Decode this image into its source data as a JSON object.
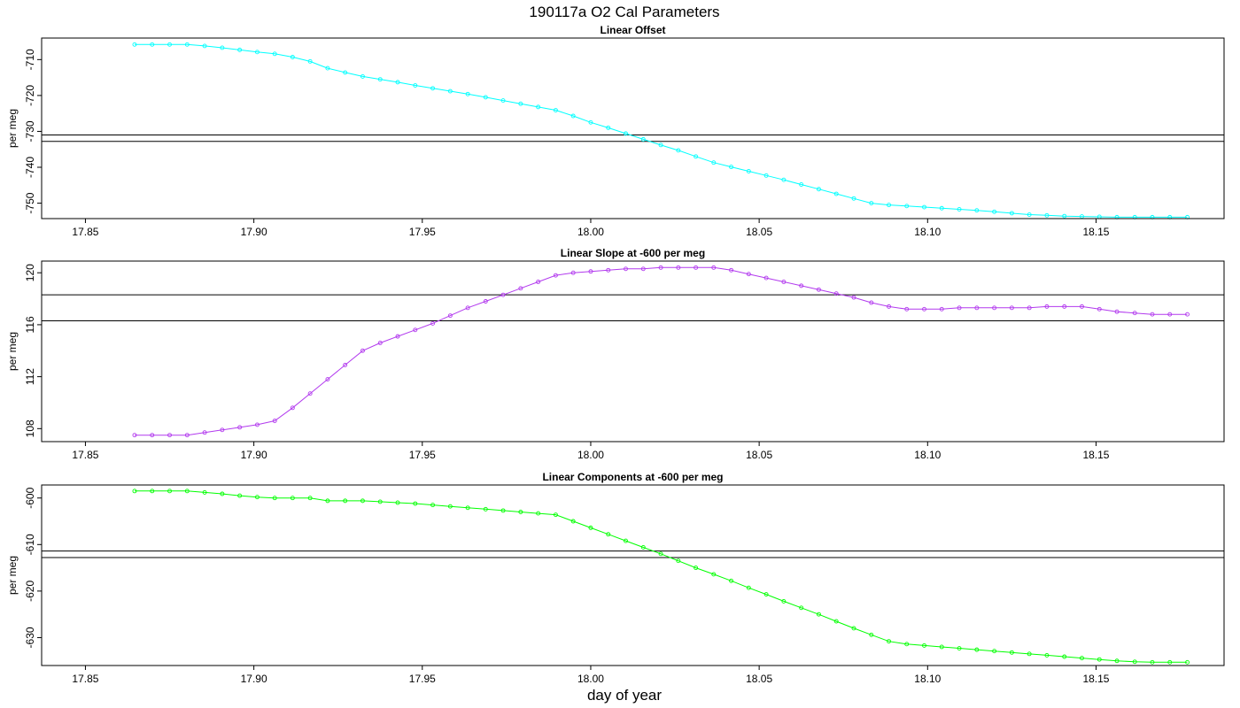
{
  "figure": {
    "title": "190117a   O2 Cal Parameters",
    "xlabel": "day of year"
  },
  "chart_data": [
    {
      "type": "line",
      "title": "Linear Offset",
      "ylabel": "per meg",
      "color": "#00ffff",
      "xlim": [
        17.837,
        18.188
      ],
      "ylim": [
        -754.3,
        -704.0
      ],
      "xticks": [
        17.85,
        17.9,
        17.95,
        18.0,
        18.05,
        18.1,
        18.15
      ],
      "xtick_labels": [
        "17.85",
        "17.90",
        "17.95",
        "18.00",
        "18.05",
        "18.10",
        "18.15"
      ],
      "yticks": [
        -710,
        -720,
        -730,
        -740,
        -750
      ],
      "ytick_labels": [
        "-710",
        "-720",
        "-730",
        "-740",
        "-750"
      ],
      "hlines": [
        -731.0,
        -732.8
      ],
      "x": [
        17.8646,
        17.8698,
        17.875,
        17.8802,
        17.8854,
        17.8906,
        17.8958,
        17.901,
        17.9062,
        17.9115,
        17.9167,
        17.9219,
        17.9271,
        17.9323,
        17.9375,
        17.9427,
        17.9479,
        17.9531,
        17.9583,
        17.9635,
        17.9688,
        17.974,
        17.9792,
        17.9844,
        17.9896,
        17.9948,
        18.0,
        18.0052,
        18.0104,
        18.0156,
        18.0208,
        18.026,
        18.0312,
        18.0365,
        18.0417,
        18.0469,
        18.0521,
        18.0573,
        18.0625,
        18.0677,
        18.0729,
        18.0781,
        18.0833,
        18.0885,
        18.0938,
        18.099,
        18.1042,
        18.1094,
        18.1146,
        18.1198,
        18.125,
        18.1302,
        18.1354,
        18.1406,
        18.1458,
        18.151,
        18.1562,
        18.1615,
        18.1667,
        18.1719,
        18.1771
      ],
      "y": [
        -705.8,
        -705.8,
        -705.8,
        -705.8,
        -706.2,
        -706.7,
        -707.3,
        -707.9,
        -708.4,
        -709.3,
        -710.5,
        -712.4,
        -713.6,
        -714.7,
        -715.5,
        -716.3,
        -717.2,
        -718.0,
        -718.8,
        -719.6,
        -720.5,
        -721.4,
        -722.3,
        -723.2,
        -724.1,
        -725.7,
        -727.5,
        -729.0,
        -730.6,
        -732.2,
        -733.8,
        -735.3,
        -737.0,
        -738.7,
        -739.9,
        -741.1,
        -742.3,
        -743.5,
        -744.8,
        -746.1,
        -747.4,
        -748.7,
        -750.0,
        -750.5,
        -750.8,
        -751.1,
        -751.4,
        -751.7,
        -752.0,
        -752.4,
        -752.8,
        -753.2,
        -753.4,
        -753.6,
        -753.7,
        -753.8,
        -753.9,
        -753.9,
        -753.9,
        -753.9,
        -753.9
      ]
    },
    {
      "type": "line",
      "title": "Linear Slope at -600 per meg",
      "ylabel": "per meg",
      "color": "#b23aee",
      "xlim": [
        17.837,
        18.188
      ],
      "ylim": [
        107.0,
        120.9
      ],
      "xticks": [
        17.85,
        17.9,
        17.95,
        18.0,
        18.05,
        18.1,
        18.15
      ],
      "xtick_labels": [
        "17.85",
        "17.90",
        "17.95",
        "18.00",
        "18.05",
        "18.10",
        "18.15"
      ],
      "yticks": [
        108,
        112,
        116,
        120
      ],
      "ytick_labels": [
        "108",
        "112",
        "116",
        "120"
      ],
      "hlines": [
        118.3,
        116.3
      ],
      "x": [
        17.8646,
        17.8698,
        17.875,
        17.8802,
        17.8854,
        17.8906,
        17.8958,
        17.901,
        17.9062,
        17.9115,
        17.9167,
        17.9219,
        17.9271,
        17.9323,
        17.9375,
        17.9427,
        17.9479,
        17.9531,
        17.9583,
        17.9635,
        17.9688,
        17.974,
        17.9792,
        17.9844,
        17.9896,
        17.9948,
        18.0,
        18.0052,
        18.0104,
        18.0156,
        18.0208,
        18.026,
        18.0312,
        18.0365,
        18.0417,
        18.0469,
        18.0521,
        18.0573,
        18.0625,
        18.0677,
        18.0729,
        18.0781,
        18.0833,
        18.0885,
        18.0938,
        18.099,
        18.1042,
        18.1094,
        18.1146,
        18.1198,
        18.125,
        18.1302,
        18.1354,
        18.1406,
        18.1458,
        18.151,
        18.1562,
        18.1615,
        18.1667,
        18.1719,
        18.1771
      ],
      "y": [
        107.5,
        107.5,
        107.5,
        107.5,
        107.7,
        107.9,
        108.1,
        108.3,
        108.6,
        109.6,
        110.7,
        111.8,
        112.9,
        114.0,
        114.6,
        115.1,
        115.6,
        116.1,
        116.7,
        117.3,
        117.8,
        118.3,
        118.8,
        119.3,
        119.8,
        120.0,
        120.1,
        120.2,
        120.3,
        120.3,
        120.4,
        120.4,
        120.4,
        120.4,
        120.2,
        119.9,
        119.6,
        119.3,
        119.0,
        118.7,
        118.4,
        118.1,
        117.7,
        117.4,
        117.2,
        117.2,
        117.2,
        117.3,
        117.3,
        117.3,
        117.3,
        117.3,
        117.4,
        117.4,
        117.4,
        117.2,
        117.0,
        116.9,
        116.8,
        116.8,
        116.8
      ]
    },
    {
      "type": "line",
      "title": "Linear Components at -600 per meg",
      "ylabel": "per meg",
      "color": "#00ff00",
      "xlim": [
        17.837,
        18.188
      ],
      "ylim": [
        -636.0,
        -597.2
      ],
      "xticks": [
        17.85,
        17.9,
        17.95,
        18.0,
        18.05,
        18.1,
        18.15
      ],
      "xtick_labels": [
        "17.85",
        "17.90",
        "17.95",
        "18.00",
        "18.05",
        "18.10",
        "18.15"
      ],
      "yticks": [
        -600,
        -610,
        -620,
        -630
      ],
      "ytick_labels": [
        "-600",
        "-610",
        "-620",
        "-630"
      ],
      "hlines": [
        -611.4,
        -612.8
      ],
      "x": [
        17.8646,
        17.8698,
        17.875,
        17.8802,
        17.8854,
        17.8906,
        17.8958,
        17.901,
        17.9062,
        17.9115,
        17.9167,
        17.9219,
        17.9271,
        17.9323,
        17.9375,
        17.9427,
        17.9479,
        17.9531,
        17.9583,
        17.9635,
        17.9688,
        17.974,
        17.9792,
        17.9844,
        17.9896,
        17.9948,
        18.0,
        18.0052,
        18.0104,
        18.0156,
        18.0208,
        18.026,
        18.0312,
        18.0365,
        18.0417,
        18.0469,
        18.0521,
        18.0573,
        18.0625,
        18.0677,
        18.0729,
        18.0781,
        18.0833,
        18.0885,
        18.0938,
        18.099,
        18.1042,
        18.1094,
        18.1146,
        18.1198,
        18.125,
        18.1302,
        18.1354,
        18.1406,
        18.1458,
        18.151,
        18.1562,
        18.1615,
        18.1667,
        18.1719,
        18.1771
      ],
      "y": [
        -598.5,
        -598.5,
        -598.5,
        -598.5,
        -598.8,
        -599.1,
        -599.5,
        -599.8,
        -600.0,
        -600.0,
        -600.0,
        -600.6,
        -600.6,
        -600.6,
        -600.8,
        -601.0,
        -601.2,
        -601.5,
        -601.8,
        -602.1,
        -602.4,
        -602.7,
        -603.0,
        -603.3,
        -603.6,
        -605.0,
        -606.4,
        -607.8,
        -609.2,
        -610.6,
        -612.0,
        -613.5,
        -615.0,
        -616.4,
        -617.8,
        -619.3,
        -620.7,
        -622.2,
        -623.6,
        -625.0,
        -626.5,
        -628.0,
        -629.4,
        -630.8,
        -631.4,
        -631.7,
        -632.0,
        -632.3,
        -632.6,
        -632.9,
        -633.2,
        -633.5,
        -633.8,
        -634.1,
        -634.4,
        -634.7,
        -635.0,
        -635.2,
        -635.3,
        -635.3,
        -635.3
      ]
    }
  ]
}
